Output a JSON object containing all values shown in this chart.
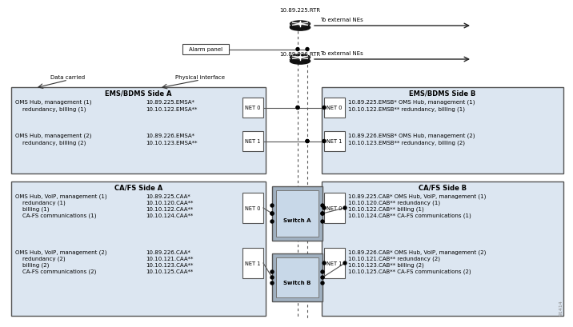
{
  "bg_color": "#ffffff",
  "box_fill": "#dce6f1",
  "switch_fill_outer": "#a0b0c0",
  "switch_fill_inner": "#c8d8e8",
  "net_fill": "#ffffff",
  "router1_label": "10.89.225.RTR",
  "router2_label": "10.89.226.RTR",
  "ext_label": "To external NEs",
  "alarm_panel_label": "Alarm panel",
  "data_carried_label": "Data carried",
  "phys_interface_label": "Physical interface",
  "ems_a_title": "EMS/BDMS Side A",
  "ems_b_title": "EMS/BDMS Side B",
  "ca_a_title": "CA/FS Side A",
  "ca_b_title": "CA/FS Side B",
  "switch_a_label": "Switch A",
  "switch_b_label": "Switch B",
  "ems_a_rows": [
    [
      "OMS Hub, management (1)",
      "10.89.225.EMSA*"
    ],
    [
      "    redundancy, billing (1)",
      "10.10.122.EMSA**"
    ],
    [
      "",
      ""
    ],
    [
      "OMS Hub, management (2)",
      "10.89.226.EMSA*"
    ],
    [
      "    redundancy, billing (2)",
      "10.10.123.EMSA**"
    ]
  ],
  "ems_b_rows": [
    [
      "10.89.225.EMSB*",
      "OMS Hub, management (1)"
    ],
    [
      "10.10.122.EMSB**",
      "redundancy, billing (1)"
    ],
    [
      "",
      ""
    ],
    [
      "10.89.226.EMSB*",
      "OMS Hub, management (2)"
    ],
    [
      "10.10.123.EMSB**",
      "redundancy, billing (2)"
    ]
  ],
  "ca_a_rows": [
    [
      "OMS Hub, VoIP, management (1)",
      "10.89.225.CAA*"
    ],
    [
      "    redundancy (1)",
      "10.10.120.CAA**"
    ],
    [
      "    billing (1)",
      "10.10.122.CAA**"
    ],
    [
      "    CA-FS communications (1)",
      "10.10.124.CAA**"
    ],
    [
      "",
      ""
    ],
    [
      "OMS Hub, VoIP, management (2)",
      "10.89.226.CAA*"
    ],
    [
      "    redundancy (2)",
      "10.10.121.CAA**"
    ],
    [
      "    billing (2)",
      "10.10.123.CAA**"
    ],
    [
      "    CA-FS communications (2)",
      "10.10.125.CAA**"
    ]
  ],
  "ca_b_rows": [
    [
      "10.89.225.CAB*",
      "OMS Hub, VoIP, management (1)"
    ],
    [
      "10.10.120.CAB**",
      "redundancy (1)"
    ],
    [
      "10.10.122.CAB**",
      "billing (1)"
    ],
    [
      "10.10.124.CAB**",
      "CA-FS communications (1)"
    ],
    [
      "",
      ""
    ],
    [
      "10.89.226.CAB*",
      "OMS Hub, VoIP, management (2)"
    ],
    [
      "10.10.121.CAB**",
      "redundancy (2)"
    ],
    [
      "10.10.123.CAB**",
      "billing (2)"
    ],
    [
      "10.10.125.CAB**",
      "CA-FS communications (2)"
    ]
  ],
  "watermark": "91414"
}
